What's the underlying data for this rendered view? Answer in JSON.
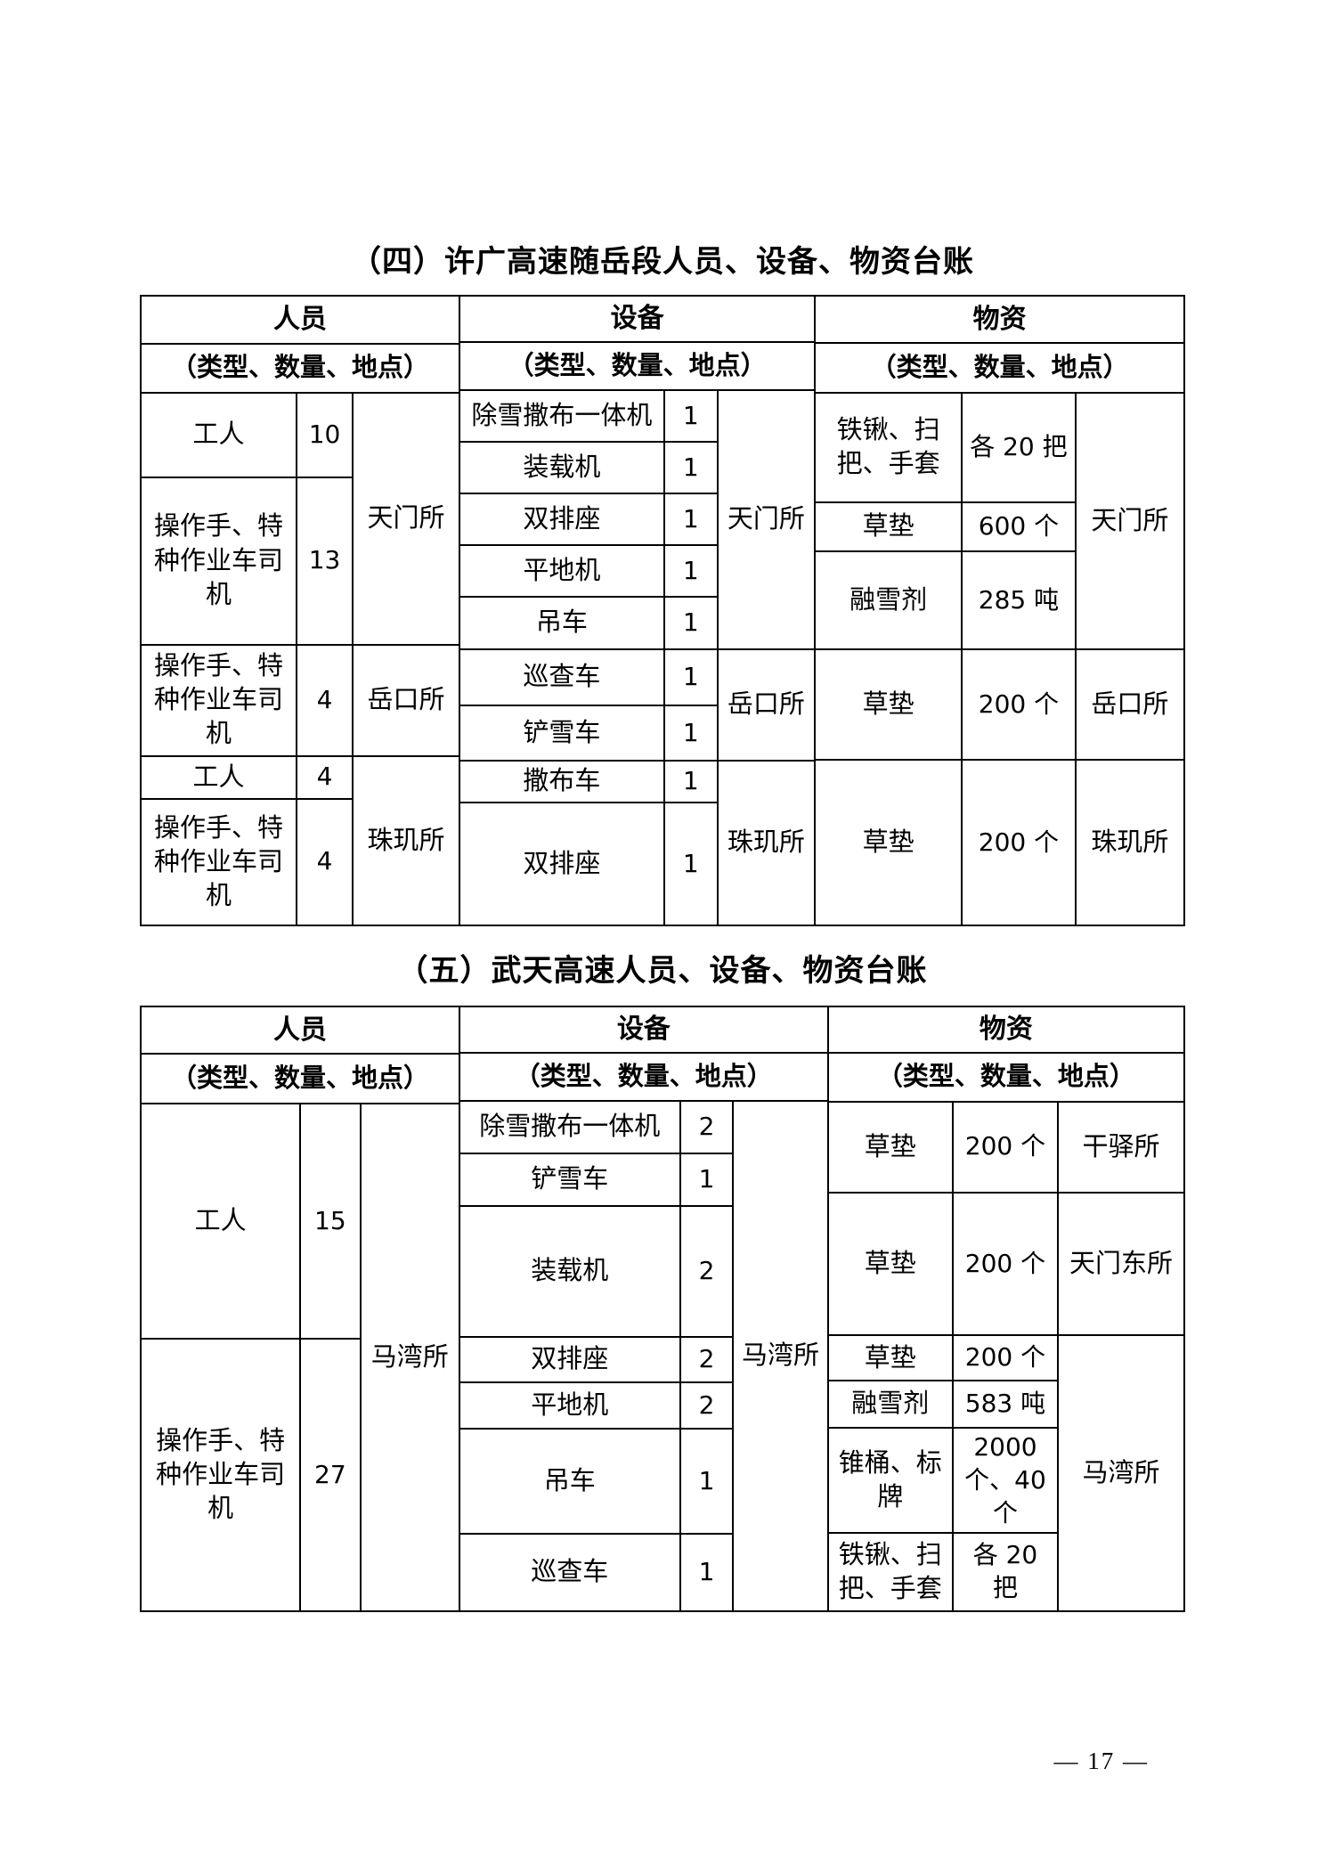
{
  "page": {
    "section4_title": "（四）许广高速随岳段人员、设备、物资台账",
    "section5_title": "（五）武天高速人员、设备、物资台账",
    "page_number": "— 17 —"
  },
  "colors": {
    "text": "#000000",
    "background": "#ffffff",
    "table_border": "#000000"
  },
  "headers": {
    "personnel": "人员",
    "equipment": "设备",
    "materials": "物资",
    "sub": "（类型、数量、地点）"
  },
  "table4": {
    "personnel": {
      "rows": [
        {
          "type": "工人",
          "qty": "10"
        },
        {
          "type": "操作手、特种作业车司机",
          "qty": "13"
        },
        {
          "type": "操作手、特种作业车司机",
          "qty": "4"
        },
        {
          "type": "工人",
          "qty": "4"
        },
        {
          "type": "操作手、特种作业车司机",
          "qty": "4"
        }
      ],
      "locations": [
        "天门所",
        "岳口所",
        "珠玑所"
      ]
    },
    "equipment": {
      "rows": [
        {
          "name": "除雪撒布一体机",
          "qty": "1"
        },
        {
          "name": "装载机",
          "qty": "1"
        },
        {
          "name": "双排座",
          "qty": "1"
        },
        {
          "name": "平地机",
          "qty": "1"
        },
        {
          "name": "吊车",
          "qty": "1"
        },
        {
          "name": "巡查车",
          "qty": "1"
        },
        {
          "name": "铲雪车",
          "qty": "1"
        },
        {
          "name": "撒布车",
          "qty": "1"
        },
        {
          "name": "双排座",
          "qty": "1"
        }
      ],
      "locations": [
        "天门所",
        "岳口所",
        "珠玑所"
      ]
    },
    "materials": {
      "rows": [
        {
          "name": "铁锹、扫把、手套",
          "qty": "各 20 把"
        },
        {
          "name": "草垫",
          "qty": "600 个"
        },
        {
          "name": "融雪剂",
          "qty": "285 吨"
        },
        {
          "name": "草垫",
          "qty": "200 个"
        },
        {
          "name": "草垫",
          "qty": "200 个"
        }
      ],
      "locations": [
        "天门所",
        "岳口所",
        "珠玑所"
      ]
    }
  },
  "table5": {
    "personnel": {
      "rows": [
        {
          "type": "工人",
          "qty": "15"
        },
        {
          "type": "操作手、特种作业车司机",
          "qty": "27"
        }
      ],
      "locations": [
        "马湾所"
      ]
    },
    "equipment": {
      "rows": [
        {
          "name": "除雪撒布一体机",
          "qty": "2"
        },
        {
          "name": "铲雪车",
          "qty": "1"
        },
        {
          "name": "装载机",
          "qty": "2"
        },
        {
          "name": "双排座",
          "qty": "2"
        },
        {
          "name": "平地机",
          "qty": "2"
        },
        {
          "name": "吊车",
          "qty": "1"
        },
        {
          "name": "巡查车",
          "qty": "1"
        }
      ],
      "locations": [
        "马湾所"
      ]
    },
    "materials": {
      "rows": [
        {
          "name": "草垫",
          "qty": "200 个"
        },
        {
          "name": "草垫",
          "qty": "200 个"
        },
        {
          "name": "草垫",
          "qty": "200 个"
        },
        {
          "name": "融雪剂",
          "qty": "583 吨"
        },
        {
          "name": "锥桶、标牌",
          "qty": "2000 个、40 个"
        },
        {
          "name": "铁锹、扫把、手套",
          "qty": "各 20 把"
        }
      ],
      "locations": [
        "干驿所",
        "天门东所",
        "马湾所"
      ]
    }
  }
}
